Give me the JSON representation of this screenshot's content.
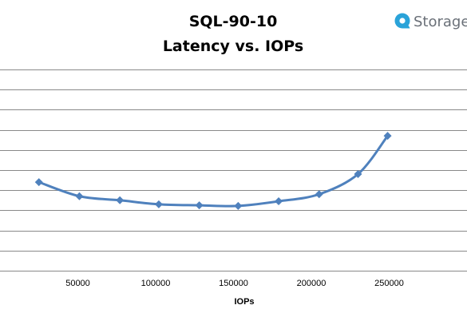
{
  "chart_data": {
    "type": "line",
    "title": "SQL-90-10",
    "subtitle": "Latency vs. IOPs",
    "xlabel": "IOPs",
    "ylabel": "",
    "xlim": [
      0,
      300000
    ],
    "x_ticks": [
      50000,
      100000,
      150000,
      200000,
      250000
    ],
    "ylim": [
      0,
      10
    ],
    "y_gridlines": [
      1,
      2,
      3,
      4,
      5,
      6,
      7,
      8,
      9,
      10
    ],
    "y_tick_labels_shown": false,
    "grid": true,
    "legend": "none",
    "series": [
      {
        "color": "#4f81bd",
        "marker": "diamond",
        "x": [
          25000,
          51000,
          77000,
          102000,
          128000,
          153000,
          179000,
          205000,
          230000,
          249000
        ],
        "y": [
          4.4,
          3.7,
          3.5,
          3.3,
          3.25,
          3.22,
          3.45,
          3.8,
          4.8,
          6.7
        ]
      }
    ]
  },
  "logo": {
    "text": "Storage",
    "icon": "storagereview-logo-icon",
    "color": "#2aa3d9"
  }
}
